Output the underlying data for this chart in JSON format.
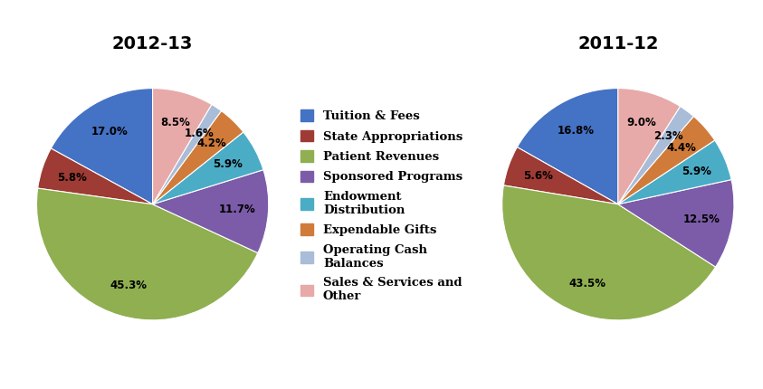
{
  "title_left": "2012-13",
  "title_right": "2011-12",
  "categories": [
    "Tuition & Fees",
    "State Appropriations",
    "Patient Revenues",
    "Sponsored Programs",
    "Endowment\nDistribution",
    "Expendable Gifts",
    "Operating Cash\nBalances",
    "Sales & Services and\nOther"
  ],
  "colors": [
    "#4472C4",
    "#9E3B34",
    "#8FAF50",
    "#7C5CA8",
    "#4BACC6",
    "#D07B3A",
    "#A9BCD8",
    "#E8A9A9"
  ],
  "values_2013": [
    17.0,
    5.8,
    45.3,
    11.7,
    5.9,
    4.2,
    1.6,
    8.5
  ],
  "values_2012": [
    16.8,
    5.6,
    43.5,
    12.5,
    5.9,
    4.4,
    2.3,
    9.0
  ],
  "startangle": 90,
  "title_fontsize": 14,
  "label_fontsize": 8.5,
  "legend_fontsize": 9.5
}
